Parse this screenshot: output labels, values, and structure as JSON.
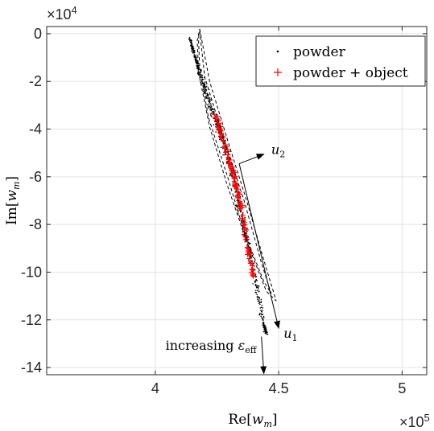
{
  "chart_data": {
    "type": "scatter",
    "xlabel_main": "Re",
    "xlabel_arg": "w",
    "xlabel_sub": "m",
    "ylabel_main": "Im",
    "ylabel_arg": "w",
    "ylabel_sub": "m",
    "x_multiplier": {
      "base": "×10",
      "exp": "5"
    },
    "y_multiplier": {
      "base": "×10",
      "exp": "4"
    },
    "xlim": [
      3.56,
      5.1
    ],
    "ylim": [
      -14.3,
      0.3
    ],
    "x_scale": 100000,
    "y_scale": 10000,
    "xticks": [
      4,
      4.5,
      5
    ],
    "xtick_labels": [
      "4",
      "4.5",
      "5"
    ],
    "yticks": [
      0,
      -2,
      -4,
      -6,
      -8,
      -10,
      -12,
      -14
    ],
    "ytick_labels": [
      "0",
      "-2",
      "-4",
      "-6",
      "-8",
      "-10",
      "-12",
      "-14"
    ],
    "grid": true,
    "legend_position": "top-right",
    "series": [
      {
        "name": "powder",
        "marker": "dot",
        "color": "#000000",
        "ridge": [
          [
            4.14,
            -0.2
          ],
          [
            4.17,
            -1.3
          ],
          [
            4.2,
            -2.3
          ],
          [
            4.24,
            -3.5
          ],
          [
            4.28,
            -4.8
          ],
          [
            4.32,
            -6.2
          ],
          [
            4.35,
            -7.6
          ],
          [
            4.38,
            -9.0
          ],
          [
            4.41,
            -10.6
          ],
          [
            4.44,
            -12.2
          ],
          [
            4.45,
            -12.6
          ]
        ],
        "count": 700
      },
      {
        "name": "powder + object",
        "marker": "plus",
        "color": "#ff0000",
        "ridge": [
          [
            4.24,
            -3.3
          ],
          [
            4.28,
            -4.6
          ],
          [
            4.32,
            -6.0
          ],
          [
            4.35,
            -7.4
          ],
          [
            4.37,
            -8.8
          ],
          [
            4.4,
            -10.2
          ]
        ],
        "count": 130
      }
    ],
    "ellipse": {
      "outer": [
        [
          4.18,
          0.2
        ],
        [
          4.22,
          -2.0
        ],
        [
          4.3,
          -4.7
        ],
        [
          4.37,
          -7.0
        ],
        [
          4.44,
          -9.5
        ],
        [
          4.49,
          -11.2
        ],
        [
          4.45,
          -10.8
        ],
        [
          4.37,
          -8.7
        ],
        [
          4.29,
          -6.3
        ],
        [
          4.22,
          -3.9
        ],
        [
          4.175,
          -1.6
        ],
        [
          4.17,
          -0.3
        ],
        [
          4.18,
          0.2
        ]
      ],
      "inner": [
        [
          4.18,
          0.1
        ],
        [
          4.2,
          -1.8
        ],
        [
          4.28,
          -4.5
        ],
        [
          4.36,
          -7.0
        ],
        [
          4.43,
          -9.6
        ],
        [
          4.47,
          -10.9
        ],
        [
          4.44,
          -10.4
        ],
        [
          4.36,
          -8.3
        ],
        [
          4.29,
          -5.9
        ],
        [
          4.215,
          -3.5
        ],
        [
          4.18,
          -1.4
        ],
        [
          4.175,
          -0.2
        ],
        [
          4.18,
          0.1
        ]
      ]
    },
    "arrows": [
      {
        "from": [
          4.34,
          -5.45
        ],
        "to": [
          4.44,
          -5.05
        ],
        "label_math": "u",
        "label_sub": "2",
        "label_at": [
          4.47,
          -5.05
        ]
      },
      {
        "from": [
          4.34,
          -5.45
        ],
        "to": [
          4.5,
          -12.35
        ],
        "label_math": "u",
        "label_sub": "1",
        "label_at": [
          4.52,
          -12.75
        ]
      },
      {
        "from": [
          4.43,
          -12.7
        ],
        "to": [
          4.44,
          -14.25
        ],
        "label_text": "increasing ",
        "label_math": "ε",
        "label_sub": "eff",
        "label_at": [
          4.41,
          -13.25
        ]
      }
    ]
  }
}
